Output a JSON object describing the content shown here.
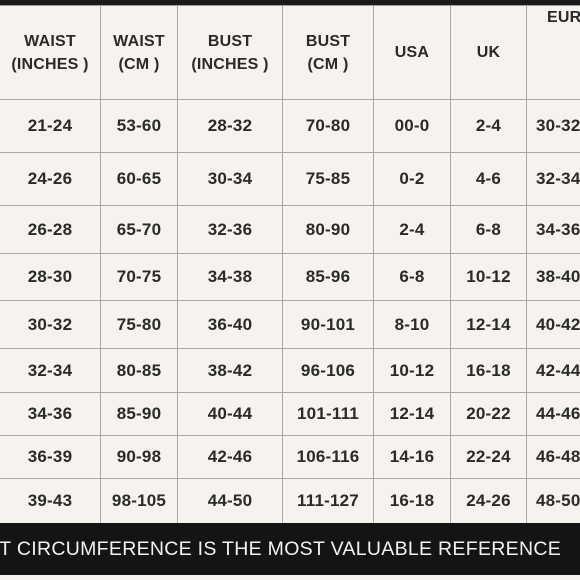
{
  "table": {
    "headers": [
      [
        "WAIST",
        "(INCHES )"
      ],
      [
        "WAIST",
        "(CM )"
      ],
      [
        "BUST",
        "(INCHES )"
      ],
      [
        "BUST",
        "(CM )"
      ],
      [
        "USA"
      ],
      [
        "UK"
      ],
      [
        "EUR"
      ]
    ],
    "rows": [
      [
        "21-24",
        "53-60",
        "28-32",
        "70-80",
        "00-0",
        "2-4",
        "30-32"
      ],
      [
        "24-26",
        "60-65",
        "30-34",
        "75-85",
        "0-2",
        "4-6",
        "32-34"
      ],
      [
        "26-28",
        "65-70",
        "32-36",
        "80-90",
        "2-4",
        "6-8",
        "34-36"
      ],
      [
        "28-30",
        "70-75",
        "34-38",
        "85-96",
        "6-8",
        "10-12",
        "38-40"
      ],
      [
        "30-32",
        "75-80",
        "36-40",
        "90-101",
        "8-10",
        "12-14",
        "40-42"
      ],
      [
        "32-34",
        "80-85",
        "38-42",
        "96-106",
        "10-12",
        "16-18",
        "42-44"
      ],
      [
        "34-36",
        "85-90",
        "40-44",
        "101-111",
        "12-14",
        "20-22",
        "44-46"
      ],
      [
        "36-39",
        "90-98",
        "42-46",
        "106-116",
        "14-16",
        "22-24",
        "46-48"
      ],
      [
        "39-43",
        "98-105",
        "44-50",
        "111-127",
        "16-18",
        "24-26",
        "48-50"
      ]
    ]
  },
  "footer": {
    "text": "ST CIRCUMFERENCE IS THE MOST VALUABLE REFERENCE"
  },
  "colors": {
    "background": "#f6f3ee",
    "text": "#2a2a2a",
    "grid_lines": "#a8a8a8",
    "footer_bg": "#141414",
    "footer_text": "#f2f2f2"
  }
}
